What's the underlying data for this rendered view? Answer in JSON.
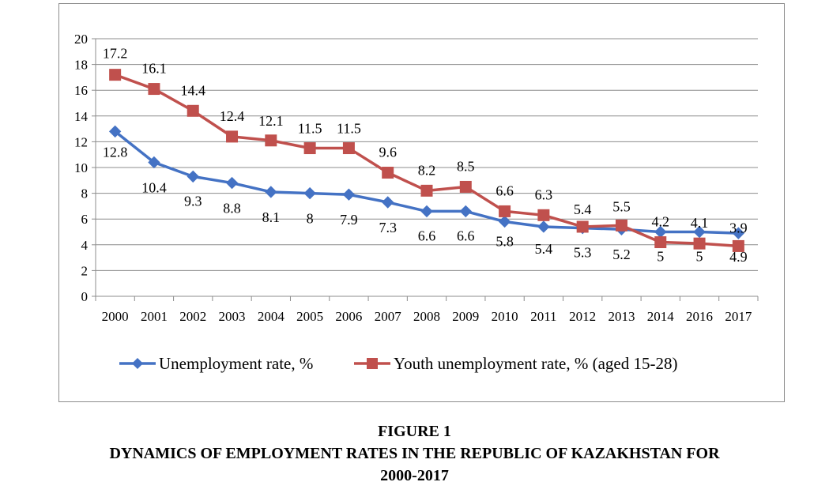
{
  "figure": {
    "label": "FIGURE 1",
    "title_line1": "DYNAMICS OF EMPLOYMENT RATES IN THE REPUBLIC OF KAZAKHSTAN FOR",
    "title_line2": "2000-2017"
  },
  "chart_data": {
    "type": "line",
    "categories": [
      "2000",
      "2001",
      "2002",
      "2003",
      "2004",
      "2005",
      "2006",
      "2007",
      "2008",
      "2009",
      "2010",
      "2011",
      "2012",
      "2013",
      "2014",
      "2016",
      "2017"
    ],
    "ylim": [
      0,
      20
    ],
    "yticks": [
      0,
      2,
      4,
      6,
      8,
      10,
      12,
      14,
      16,
      18,
      20
    ],
    "grid": true,
    "legend_position": "bottom",
    "series": [
      {
        "name": "Unemployment rate, %",
        "color": "#4472C4",
        "marker": "diamond",
        "values": [
          12.8,
          10.4,
          9.3,
          8.8,
          8.1,
          8,
          7.9,
          7.3,
          6.6,
          6.6,
          5.8,
          5.4,
          5.3,
          5.2,
          5,
          5,
          4.9
        ],
        "labels": [
          "12.8",
          "10.4",
          "9.3",
          "8.8",
          "8.1",
          "8",
          "7.9",
          "7.3",
          "6.6",
          "6.6",
          "5.8",
          "5.4",
          "5.3",
          "5.2",
          "5",
          "5",
          "4.9"
        ]
      },
      {
        "name": "Youth unemployment rate, % (aged 15-28)",
        "color": "#C0504D",
        "marker": "square",
        "values": [
          17.2,
          16.1,
          14.4,
          12.4,
          12.1,
          11.5,
          11.5,
          9.6,
          8.2,
          8.5,
          6.6,
          6.3,
          5.4,
          5.5,
          4.2,
          4.1,
          3.9
        ],
        "labels": [
          "17.2",
          "16.1",
          "14.4",
          "12.4",
          "12.1",
          "11.5",
          "11.5",
          "9.6",
          "8.2",
          "8.5",
          "6.6",
          "6.3",
          "5.4",
          "5.5",
          "4.2",
          "4.1",
          "3.9"
        ]
      }
    ]
  }
}
